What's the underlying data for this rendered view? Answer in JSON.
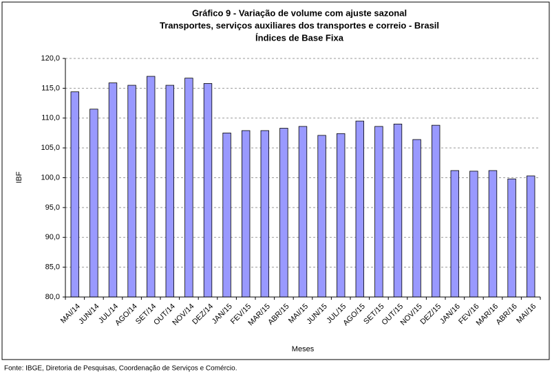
{
  "chart_data": {
    "type": "bar",
    "title": "Gráfico 9 - Variação de volume com ajuste sazonal",
    "subtitle": [
      "Transportes, serviços auxiliares dos transportes e correio - Brasil",
      "Índices de Base Fixa"
    ],
    "y_label": "IBF",
    "x_label": "Meses",
    "source": "Fonte: IBGE, Diretoria de Pesquisas, Coordenação de Serviços e Comércio.",
    "categories": [
      "MAI/14",
      "JUN/14",
      "JUL/14",
      "AGO/14",
      "SET/14",
      "OUT/14",
      "NOV/14",
      "DEZ/14",
      "JAN/15",
      "FEV/15",
      "MAR/15",
      "ABR/15",
      "MAI/15",
      "JUN/15",
      "JUL/15",
      "AGO/15",
      "SET/15",
      "OUT/15",
      "NOV/15",
      "DEZ/15",
      "JAN/16",
      "FEV/16",
      "MAR/16",
      "ABR/16",
      "MAI/16"
    ],
    "values": [
      114.4,
      111.5,
      115.9,
      115.5,
      117.0,
      115.5,
      116.7,
      115.8,
      107.5,
      107.9,
      107.9,
      108.3,
      108.6,
      107.1,
      107.4,
      109.5,
      108.6,
      109.0,
      106.4,
      108.8,
      101.2,
      101.1,
      101.2,
      99.8,
      100.3
    ],
    "color": "#9999ff",
    "ylim": [
      80,
      120
    ],
    "yticks": [
      {
        "value": 80,
        "label": "80,0"
      },
      {
        "value": 85,
        "label": "85,0"
      },
      {
        "value": 90,
        "label": "90,0"
      },
      {
        "value": 95,
        "label": "95,0"
      },
      {
        "value": 100,
        "label": "100,0"
      },
      {
        "value": 105,
        "label": "105,0"
      },
      {
        "value": 110,
        "label": "110,0"
      },
      {
        "value": 115,
        "label": "115,0"
      },
      {
        "value": 120,
        "label": "120,0"
      }
    ],
    "grid": true
  }
}
